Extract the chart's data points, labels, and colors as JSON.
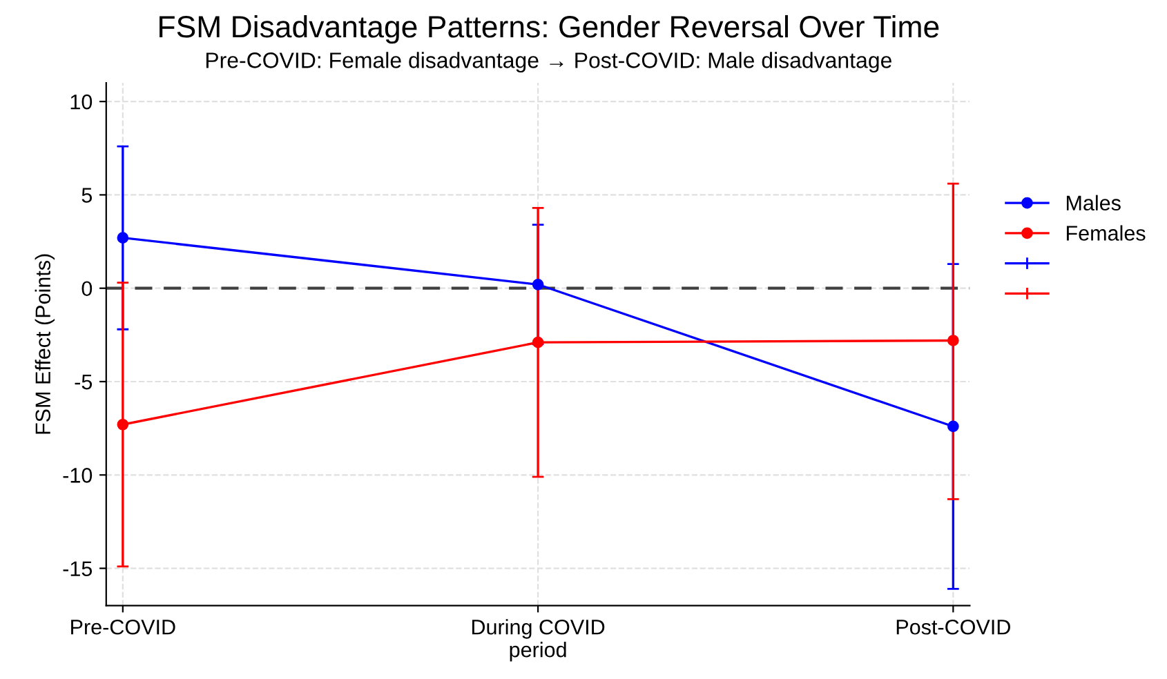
{
  "chart_data": {
    "type": "line",
    "title": "FSM Disadvantage Patterns: Gender Reversal Over Time",
    "subtitle": "Pre-COVID: Female disadvantage → Post-COVID: Male disadvantage",
    "ylabel": "FSM Effect (Points)",
    "categories": [
      "Pre-COVID",
      "During COVID period",
      "Post-COVID"
    ],
    "series": [
      {
        "name": "Males",
        "color": "#0000ff",
        "values": [
          2.7,
          0.2,
          -7.4
        ],
        "errors": [
          [
            -2.2,
            7.6
          ],
          [
            -3.0,
            3.4
          ],
          [
            -16.1,
            1.3
          ]
        ]
      },
      {
        "name": "Females",
        "color": "#ff0000",
        "values": [
          -7.3,
          -2.9,
          -2.8
        ],
        "errors": [
          [
            -14.9,
            0.3
          ],
          [
            -10.1,
            4.3
          ],
          [
            -11.3,
            5.6
          ]
        ]
      }
    ],
    "ylim": [
      -17,
      11
    ],
    "yticks": [
      -15,
      -10,
      -5,
      0,
      5,
      10
    ],
    "ref_lines": [
      {
        "axis": "y",
        "value": 0,
        "color": "#404040",
        "line_style": "dashed"
      }
    ],
    "grid": true,
    "legend": "right",
    "marker": "circle",
    "line_style": "solid"
  }
}
